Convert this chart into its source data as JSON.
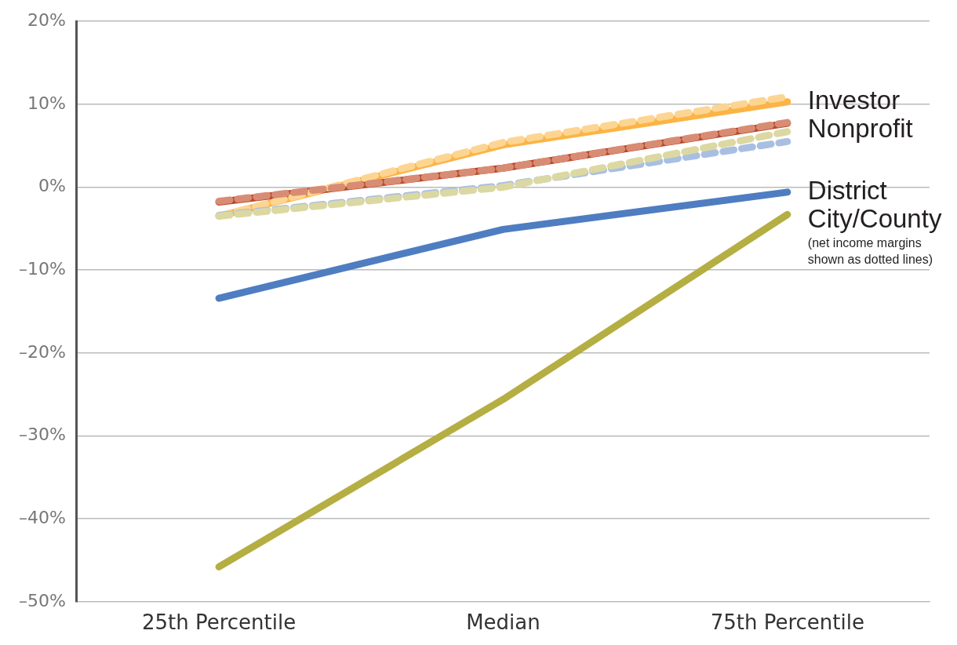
{
  "chart_data": {
    "type": "line",
    "categories": [
      "25th Percentile",
      "Median",
      "75th Percentile"
    ],
    "series": [
      {
        "name": "Investor",
        "color": "#fbb445",
        "values": [
          -3.5,
          5.1,
          10.3
        ],
        "line_style": "solid"
      },
      {
        "name": "Nonprofit",
        "color": "#b9482b",
        "values": [
          -1.8,
          2.3,
          7.7
        ],
        "line_style": "solid"
      },
      {
        "name": "District",
        "color": "#4f7dc1",
        "values": [
          -13.4,
          -5.1,
          -0.6
        ],
        "line_style": "solid"
      },
      {
        "name": "City/County",
        "color": "#b5ae42",
        "values": [
          -45.8,
          -25.6,
          -3.3
        ],
        "line_style": "solid"
      },
      {
        "color": "#fdd592",
        "values": [
          -3.5,
          5.4,
          10.9
        ],
        "line_style": "dashed"
      },
      {
        "color": "#d98c74",
        "values": [
          -1.7,
          2.3,
          7.8
        ],
        "line_style": "dashed"
      },
      {
        "color": "#a9bfe2",
        "values": [
          -3.4,
          0.2,
          5.5
        ],
        "line_style": "dashed"
      },
      {
        "color": "#dcd8a2",
        "values": [
          -3.5,
          0,
          6.7
        ],
        "line_style": "dashed"
      }
    ],
    "ylim": [
      -50,
      20
    ],
    "yticks": [
      {
        "value": -50,
        "label": "–50%"
      },
      {
        "value": -40,
        "label": "–40%"
      },
      {
        "value": -30,
        "label": "–30%"
      },
      {
        "value": -20,
        "label": "–20%"
      },
      {
        "value": -10,
        "label": "–10%"
      },
      {
        "value": 0,
        "label": "0%"
      },
      {
        "value": 10,
        "label": "10%"
      },
      {
        "value": 20,
        "label": "20%"
      }
    ],
    "grid": "y",
    "legend": false,
    "marker": "none",
    "annotations": [
      "(net income margins shown as dotted lines)"
    ]
  }
}
